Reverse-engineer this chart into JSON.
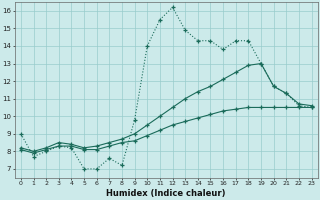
{
  "bg_color": "#cceaea",
  "grid_color": "#99cccc",
  "line_color": "#1a6b5a",
  "xlabel": "Humidex (Indice chaleur)",
  "xlim": [
    -0.5,
    23.5
  ],
  "ylim": [
    6.5,
    16.5
  ],
  "yticks": [
    7,
    8,
    9,
    10,
    11,
    12,
    13,
    14,
    15,
    16
  ],
  "xticks": [
    0,
    1,
    2,
    3,
    4,
    5,
    6,
    7,
    8,
    9,
    10,
    11,
    12,
    13,
    14,
    15,
    16,
    17,
    18,
    19,
    20,
    21,
    22,
    23
  ],
  "line1_x": [
    0,
    1,
    2,
    3,
    4,
    5,
    6,
    7,
    8,
    9,
    10,
    11,
    12,
    13,
    14,
    15,
    16,
    17,
    18,
    19,
    20,
    21,
    22,
    23
  ],
  "line1_y": [
    9.0,
    7.7,
    8.0,
    8.3,
    8.2,
    7.0,
    7.0,
    7.6,
    7.2,
    9.8,
    14.0,
    15.5,
    16.2,
    14.9,
    14.3,
    14.3,
    13.8,
    14.3,
    14.3,
    13.0,
    11.7,
    11.3,
    10.6,
    10.5
  ],
  "line2_x": [
    0,
    1,
    2,
    3,
    4,
    5,
    6,
    7,
    8,
    9,
    10,
    11,
    12,
    13,
    14,
    15,
    16,
    17,
    18,
    19,
    20,
    21,
    22,
    23
  ],
  "line2_y": [
    8.2,
    8.0,
    8.2,
    8.5,
    8.4,
    8.2,
    8.3,
    8.5,
    8.7,
    9.0,
    9.5,
    10.0,
    10.5,
    11.0,
    11.4,
    11.7,
    12.1,
    12.5,
    12.9,
    13.0,
    11.7,
    11.3,
    10.7,
    10.6
  ],
  "line3_x": [
    0,
    1,
    2,
    3,
    4,
    5,
    6,
    7,
    8,
    9,
    10,
    11,
    12,
    13,
    14,
    15,
    16,
    17,
    18,
    19,
    20,
    21,
    22,
    23
  ],
  "line3_y": [
    8.1,
    7.9,
    8.1,
    8.3,
    8.3,
    8.1,
    8.1,
    8.3,
    8.5,
    8.6,
    8.9,
    9.2,
    9.5,
    9.7,
    9.9,
    10.1,
    10.3,
    10.4,
    10.5,
    10.5,
    10.5,
    10.5,
    10.5,
    10.5
  ]
}
